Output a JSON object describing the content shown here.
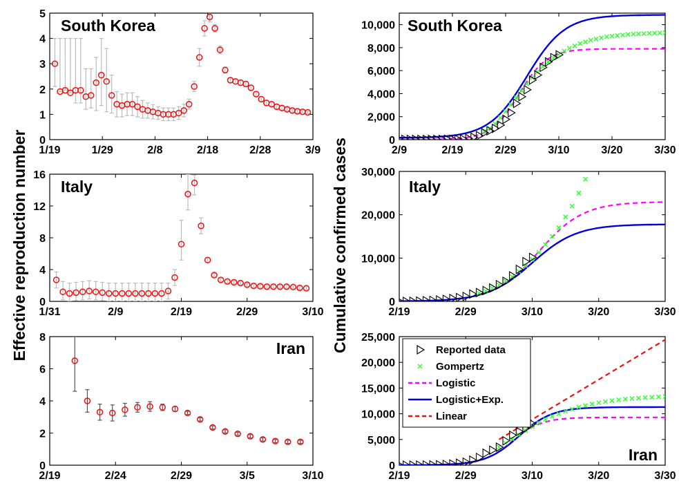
{
  "ylabel_left": "Effective reproduction number",
  "ylabel_right": "Cumulative confirmed cases",
  "legend": {
    "entries": [
      {
        "label": "Reported data",
        "color": "#000000",
        "marker": "triangle-right"
      },
      {
        "label": "Gompertz",
        "color": "#33ff33",
        "marker": "x"
      },
      {
        "label": "Logistic",
        "color": "#ff00ff",
        "line": "dashed"
      },
      {
        "label": "Logistic+Exp.",
        "color": "#0000dd",
        "line": "solid"
      },
      {
        "label": "Linear",
        "color": "#ee1111",
        "line": "dashed"
      }
    ]
  },
  "chart_data": [
    {
      "id": "sk_r",
      "type": "scatter",
      "title": "South Korea",
      "xticks": [
        "1/19",
        "1/29",
        "2/8",
        "2/18",
        "2/28",
        "3/9"
      ],
      "xlim": [
        0,
        51
      ],
      "ylim": [
        0,
        5
      ],
      "yticks": [
        "0",
        "1",
        "2",
        "3",
        "4",
        "5"
      ],
      "x": [
        1,
        2,
        3,
        4,
        5,
        6,
        7,
        8,
        9,
        10,
        11,
        12,
        13,
        14,
        15,
        16,
        17,
        18,
        19,
        20,
        21,
        22,
        23,
        24,
        25,
        26,
        27,
        28,
        29,
        30,
        31,
        32,
        33,
        34,
        35,
        36,
        37,
        38,
        39,
        40,
        41,
        42,
        43,
        44,
        45,
        46,
        47,
        48,
        49,
        50
      ],
      "values": [
        3.0,
        1.9,
        1.95,
        1.85,
        1.95,
        1.95,
        1.7,
        1.75,
        2.25,
        2.55,
        2.3,
        1.75,
        1.4,
        1.35,
        1.4,
        1.4,
        1.3,
        1.2,
        1.15,
        1.1,
        1.05,
        1.0,
        1.0,
        1.0,
        1.05,
        1.15,
        1.4,
        2.1,
        3.25,
        4.4,
        4.85,
        4.4,
        3.55,
        2.75,
        2.35,
        2.3,
        2.25,
        2.2,
        2.05,
        1.8,
        1.6,
        1.45,
        1.4,
        1.3,
        1.25,
        1.2,
        1.15,
        1.12,
        1.1,
        1.08
      ],
      "err_low": [
        0.9,
        0,
        0,
        0,
        0.5,
        0.5,
        0.5,
        0.5,
        1.1,
        1.2,
        1.2,
        0.7,
        0.5,
        0.45,
        0.45,
        0.45,
        0.4,
        0.35,
        0.3,
        0.28,
        0.25,
        0.25,
        0.25,
        0.25,
        0.25,
        0.25,
        0.2,
        0.2,
        0.35,
        0.3,
        0.2,
        0.15,
        0.15,
        0.12,
        0.1,
        0.1,
        0.1,
        0.1,
        0.1,
        0.1,
        0.1,
        0.1,
        0.08,
        0.08,
        0.08,
        0.06,
        0.06,
        0.06,
        0.05,
        0.05
      ],
      "err_high": [
        1.0,
        2.1,
        2.05,
        2.15,
        2.05,
        2.05,
        1.1,
        1.05,
        1.0,
        1.45,
        1.3,
        0.8,
        0.5,
        0.45,
        0.45,
        0.45,
        0.4,
        0.35,
        0.3,
        0.28,
        0.25,
        0.25,
        0.25,
        0.25,
        0.25,
        0.25,
        0.2,
        0.2,
        0.35,
        0.3,
        0.2,
        0.15,
        0.15,
        0.12,
        0.1,
        0.1,
        0.1,
        0.1,
        0.1,
        0.1,
        0.1,
        0.1,
        0.08,
        0.08,
        0.08,
        0.06,
        0.06,
        0.06,
        0.05,
        0.05
      ]
    },
    {
      "id": "it_r",
      "type": "scatter",
      "title": "Italy",
      "xticks": [
        "1/31",
        "2/9",
        "2/19",
        "2/29",
        "3/10"
      ],
      "xlim": [
        0,
        40
      ],
      "ylim": [
        0,
        16
      ],
      "yticks": [
        "0",
        "4",
        "8",
        "12",
        "16"
      ],
      "x": [
        1,
        2,
        3,
        4,
        5,
        6,
        7,
        8,
        9,
        10,
        11,
        12,
        13,
        14,
        15,
        16,
        17,
        18,
        19,
        20,
        21,
        22,
        23,
        24,
        25,
        26,
        27,
        28,
        29,
        30,
        31,
        32,
        33,
        34,
        35,
        36,
        37,
        38,
        39
      ],
      "values": [
        2.7,
        1.2,
        1.0,
        1.1,
        1.2,
        1.3,
        1.2,
        1.1,
        1.0,
        1.0,
        1.0,
        1.0,
        1.0,
        1.0,
        1.0,
        1.0,
        1.0,
        1.3,
        3.0,
        7.2,
        13.5,
        14.9,
        9.5,
        5.2,
        3.3,
        2.7,
        2.5,
        2.4,
        2.3,
        2.1,
        1.95,
        1.9,
        1.85,
        1.85,
        1.85,
        1.85,
        1.8,
        1.7,
        1.65
      ],
      "err_low": [
        1.0,
        1.0,
        1.0,
        1.0,
        1.0,
        1.0,
        1.0,
        1.0,
        1.0,
        1.0,
        1.0,
        1.0,
        1.0,
        1.0,
        1.0,
        1.0,
        1.0,
        1.0,
        1.0,
        2.0,
        2.0,
        1.5,
        1.0,
        0.3,
        0.2,
        0.2,
        0.2,
        0.2,
        0.2,
        0.2,
        0.2,
        0.2,
        0.2,
        0.2,
        0.2,
        0.2,
        0.2,
        0.2,
        0.2
      ],
      "err_high": [
        1.0,
        1.3,
        1.3,
        1.3,
        1.3,
        1.3,
        1.3,
        1.3,
        1.3,
        1.3,
        1.3,
        1.3,
        1.3,
        1.3,
        1.3,
        1.3,
        1.3,
        1.0,
        1.0,
        3.0,
        2.5,
        1.0,
        1.0,
        0.3,
        0.2,
        0.2,
        0.2,
        0.2,
        0.2,
        0.2,
        0.2,
        0.2,
        0.2,
        0.2,
        0.2,
        0.2,
        0.2,
        0.2,
        0.2
      ]
    },
    {
      "id": "ir_r",
      "type": "scatter",
      "title": "Iran",
      "xticks": [
        "2/19",
        "2/24",
        "2/29",
        "3/5",
        "3/10"
      ],
      "xlim": [
        0,
        21
      ],
      "ylim": [
        0,
        8
      ],
      "yticks": [
        "0",
        "2",
        "4",
        "6",
        "8"
      ],
      "x": [
        2,
        3,
        4,
        5,
        6,
        7,
        8,
        9,
        10,
        11,
        12,
        13,
        14,
        15,
        16,
        17,
        18,
        19,
        20
      ],
      "values": [
        6.5,
        4.0,
        3.3,
        3.25,
        3.45,
        3.6,
        3.65,
        3.6,
        3.5,
        3.25,
        2.85,
        2.35,
        2.1,
        1.95,
        1.8,
        1.6,
        1.5,
        1.45,
        1.45
      ],
      "err_low": [
        1.9,
        0.7,
        0.5,
        0.5,
        0.4,
        0.3,
        0.3,
        0.2,
        0.15,
        0.1,
        0.1,
        0.1,
        0.1,
        0.1,
        0.1,
        0.1,
        0.1,
        0.1,
        0.1
      ],
      "err_high": [
        1.5,
        0.7,
        0.5,
        0.5,
        0.4,
        0.3,
        0.3,
        0.2,
        0.15,
        0.1,
        0.1,
        0.1,
        0.1,
        0.1,
        0.1,
        0.1,
        0.1,
        0.1,
        0.1
      ]
    },
    {
      "id": "sk_c",
      "type": "line",
      "title": "South Korea",
      "xticks": [
        "2/9",
        "2/19",
        "2/29",
        "3/10",
        "3/20",
        "3/30"
      ],
      "xlim": [
        0,
        50
      ],
      "ylim": [
        0,
        11000
      ],
      "yticks": [
        "0",
        "2,000",
        "4,000",
        "6,000",
        "8,000",
        "10,000"
      ],
      "reported": {
        "x": [
          0,
          1,
          2,
          3,
          4,
          5,
          6,
          7,
          8,
          9,
          10,
          11,
          12,
          13,
          14,
          15,
          16,
          17,
          18,
          19,
          20,
          21,
          22,
          23,
          24,
          25,
          26,
          27,
          28,
          29,
          30
        ],
        "values": [
          27,
          28,
          28,
          28,
          28,
          28,
          28,
          28,
          28,
          29,
          30,
          31,
          51,
          104,
          204,
          346,
          602,
          763,
          977,
          1261,
          1766,
          2337,
          3150,
          3736,
          4335,
          5186,
          5621,
          6284,
          6767,
          7134,
          7382
        ]
      },
      "gompertz": {
        "x": [
          16,
          17,
          18,
          19,
          20,
          21,
          22,
          23,
          24,
          25,
          26,
          27,
          28,
          29,
          30,
          31,
          32,
          33,
          34,
          35,
          36,
          37,
          38,
          39,
          40,
          41,
          42,
          43,
          44,
          45,
          46,
          47,
          48,
          49,
          50
        ],
        "values": [
          700,
          1000,
          1400,
          1900,
          2450,
          3050,
          3650,
          4250,
          4850,
          5400,
          5900,
          6350,
          6750,
          7100,
          7400,
          7700,
          7950,
          8150,
          8350,
          8500,
          8650,
          8750,
          8850,
          8950,
          9000,
          9050,
          9100,
          9150,
          9180,
          9200,
          9220,
          9240,
          9260,
          9280,
          9300
        ]
      },
      "logistic": {
        "L": 7900,
        "k": 0.38,
        "t0": 22.5,
        "base": 0
      },
      "logistic_exp": {
        "L": 10700,
        "k": 0.28,
        "t0": 24.0,
        "base": 150
      }
    },
    {
      "id": "it_c",
      "type": "line",
      "title": "Italy",
      "xticks": [
        "2/19",
        "2/29",
        "3/10",
        "3/20",
        "3/30"
      ],
      "xlim": [
        0,
        40
      ],
      "ylim": [
        0,
        30000
      ],
      "yticks": [
        "0",
        "10,000",
        "20,000",
        "30,000"
      ],
      "reported": {
        "x": [
          0,
          1,
          2,
          3,
          4,
          5,
          6,
          7,
          8,
          9,
          10,
          11,
          12,
          13,
          14,
          15,
          16,
          17,
          18,
          19,
          20
        ],
        "values": [
          3,
          3,
          20,
          79,
          157,
          229,
          323,
          470,
          655,
          889,
          1128,
          1694,
          2036,
          2502,
          3089,
          3858,
          4636,
          5883,
          7375,
          9172,
          10149
        ]
      },
      "gompertz": {
        "x": [
          12,
          13,
          14,
          15,
          16,
          17,
          18,
          19,
          20,
          21,
          22,
          23,
          24,
          25,
          26,
          27,
          28
        ],
        "values": [
          1900,
          2400,
          3050,
          3800,
          4700,
          5700,
          6900,
          8200,
          9700,
          11300,
          13100,
          15000,
          17000,
          19500,
          22000,
          25000,
          28200
        ]
      },
      "logistic": {
        "L": 23000,
        "k": 0.3,
        "t0": 21.0,
        "base": 0
      },
      "logistic_exp": {
        "L": 17800,
        "k": 0.3,
        "t0": 20.0,
        "base": 0
      }
    },
    {
      "id": "ir_c",
      "type": "line",
      "title": "Iran",
      "xticks": [
        "2/19",
        "2/29",
        "3/10",
        "3/20",
        "3/30"
      ],
      "xlim": [
        0,
        40
      ],
      "ylim": [
        0,
        25000
      ],
      "yticks": [
        "0",
        "5,000",
        "10,000",
        "15,000",
        "20,000",
        "25,000"
      ],
      "reported": {
        "x": [
          0,
          1,
          2,
          3,
          4,
          5,
          6,
          7,
          8,
          9,
          10,
          11,
          12,
          13,
          14,
          15,
          16,
          17,
          18,
          19,
          20
        ],
        "values": [
          2,
          5,
          18,
          28,
          43,
          61,
          95,
          139,
          245,
          388,
          593,
          978,
          1501,
          2336,
          2922,
          3513,
          4747,
          5823,
          6566,
          7161,
          8042
        ]
      },
      "gompertz": {
        "x": [
          15,
          16,
          17,
          18,
          19,
          20,
          21,
          22,
          23,
          24,
          25,
          26,
          27,
          28,
          29,
          30,
          31,
          32,
          33,
          34,
          35,
          36,
          37,
          38,
          39,
          40
        ],
        "values": [
          3500,
          4300,
          5100,
          5900,
          6700,
          7500,
          8200,
          8900,
          9500,
          10000,
          10500,
          10900,
          11300,
          11600,
          11900,
          12150,
          12350,
          12550,
          12700,
          12850,
          12950,
          13050,
          13150,
          13200,
          13280,
          13350
        ]
      },
      "logistic": {
        "L": 9300,
        "k": 0.45,
        "t0": 17.0,
        "base": 0
      },
      "logistic_exp": {
        "L": 11300,
        "k": 0.4,
        "t0": 18.0,
        "base": 0
      },
      "linear": {
        "x": [
          15,
          40
        ],
        "values": [
          5000,
          24400
        ]
      }
    }
  ]
}
